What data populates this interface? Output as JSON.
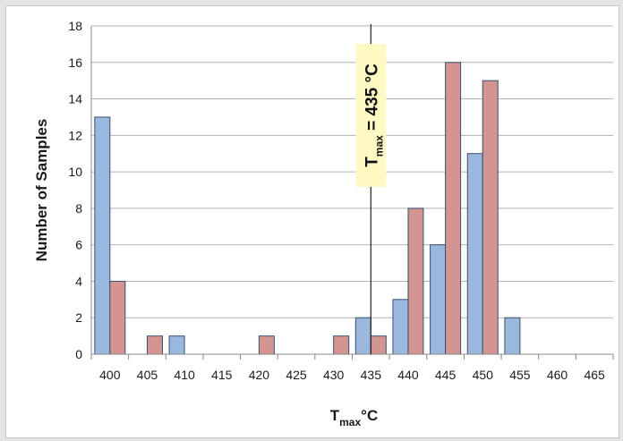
{
  "chart_data": {
    "type": "bar",
    "categories": [
      "400",
      "405",
      "410",
      "415",
      "420",
      "425",
      "430",
      "435",
      "440",
      "445",
      "450",
      "455",
      "460",
      "465"
    ],
    "series": [
      {
        "values": [
          13,
          0,
          1,
          0,
          0,
          0,
          0,
          2,
          3,
          6,
          11,
          2,
          0,
          0
        ],
        "color": "#9ab7de"
      },
      {
        "values": [
          4,
          1,
          0,
          0,
          1,
          0,
          1,
          1,
          8,
          16,
          15,
          0,
          0,
          0
        ],
        "color": "#d39591"
      }
    ],
    "ylabel": "Number of Samples",
    "xlabel": {
      "main": "T",
      "sub": "max",
      "unit": "°C"
    },
    "ylim": [
      0,
      18
    ],
    "yticks": [
      0,
      2,
      4,
      6,
      8,
      10,
      12,
      14,
      16,
      18
    ],
    "grid": true,
    "annotation": {
      "x": 435,
      "main": "T",
      "sub": "max",
      "rest": " = 435 °C",
      "bg": "#fff9c4"
    },
    "bar_edge": "#3c4f6e",
    "grid_color": "#b3b3b3"
  }
}
